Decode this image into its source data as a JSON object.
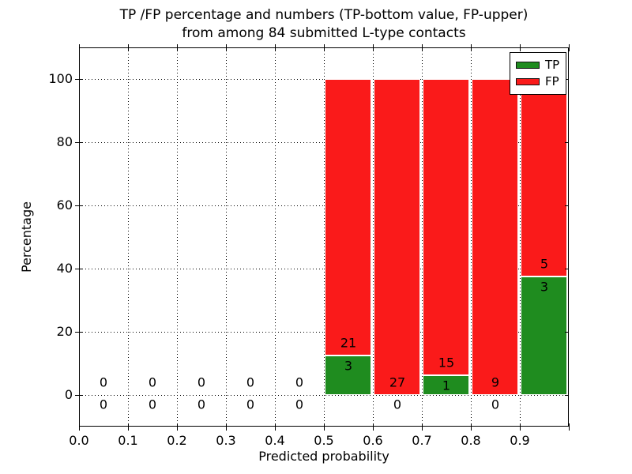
{
  "title": {
    "line1": "TP /FP percentage and numbers (TP-bottom value, FP-upper)",
    "line2": "from among 84 submitted L-type contacts"
  },
  "axes": {
    "x_label": "Predicted probability",
    "y_label": "Percentage",
    "x_tick_labels": [
      "0.0",
      "0.1",
      "0.2",
      "0.3",
      "0.4",
      "0.5",
      "0.6",
      "0.7",
      "0.8",
      "0.9"
    ],
    "y_tick_labels": [
      "0",
      "20",
      "40",
      "60",
      "80",
      "100"
    ]
  },
  "legend": {
    "position": "upper right",
    "items": [
      {
        "label": "TP",
        "color": "#1f8c1f"
      },
      {
        "label": "FP",
        "color": "#fa1a1a"
      }
    ]
  },
  "colors": {
    "tp": "#1f8c1f",
    "fp": "#fa1a1a",
    "grid": "#000000",
    "text": "#000000",
    "background": "#ffffff"
  },
  "chart_data": {
    "type": "bar",
    "stacked": true,
    "title": "TP /FP percentage and numbers (TP-bottom value, FP-upper) from among 84 submitted L-type contacts",
    "xlabel": "Predicted probability",
    "ylabel": "Percentage",
    "xlim": [
      0.0,
      1.0
    ],
    "ylim": [
      -10,
      110
    ],
    "grid": true,
    "grid_style": "dotted",
    "x_tick_values": [
      0.0,
      0.1,
      0.2,
      0.3,
      0.4,
      0.5,
      0.6,
      0.7,
      0.8,
      0.9,
      1.0
    ],
    "y_tick_values": [
      0,
      20,
      40,
      60,
      80,
      100
    ],
    "grid_x_values": [
      0.1,
      0.2,
      0.3,
      0.4,
      0.5,
      0.6,
      0.7,
      0.8,
      0.9
    ],
    "grid_y_values": [
      0,
      20,
      40,
      60,
      80,
      100
    ],
    "total_contacts": 84,
    "series": [
      {
        "name": "TP",
        "counts": [
          0,
          0,
          0,
          0,
          0,
          3,
          0,
          1,
          0,
          3
        ]
      },
      {
        "name": "FP",
        "counts": [
          0,
          0,
          0,
          0,
          0,
          21,
          27,
          15,
          9,
          5
        ]
      }
    ],
    "bins": [
      {
        "range": [
          0.0,
          0.1
        ],
        "tp": 0,
        "fp": 0,
        "tp_pct": 0,
        "fp_pct": 0
      },
      {
        "range": [
          0.1,
          0.2
        ],
        "tp": 0,
        "fp": 0,
        "tp_pct": 0,
        "fp_pct": 0
      },
      {
        "range": [
          0.2,
          0.3
        ],
        "tp": 0,
        "fp": 0,
        "tp_pct": 0,
        "fp_pct": 0
      },
      {
        "range": [
          0.3,
          0.4
        ],
        "tp": 0,
        "fp": 0,
        "tp_pct": 0,
        "fp_pct": 0
      },
      {
        "range": [
          0.4,
          0.5
        ],
        "tp": 0,
        "fp": 0,
        "tp_pct": 0,
        "fp_pct": 0
      },
      {
        "range": [
          0.5,
          0.6
        ],
        "tp": 3,
        "fp": 21,
        "tp_pct": 12.5,
        "fp_pct": 87.5
      },
      {
        "range": [
          0.6,
          0.7
        ],
        "tp": 0,
        "fp": 27,
        "tp_pct": 0,
        "fp_pct": 100
      },
      {
        "range": [
          0.7,
          0.8
        ],
        "tp": 1,
        "fp": 15,
        "tp_pct": 6.25,
        "fp_pct": 93.75
      },
      {
        "range": [
          0.8,
          0.9
        ],
        "tp": 0,
        "fp": 9,
        "tp_pct": 0,
        "fp_pct": 100
      },
      {
        "range": [
          0.9,
          1.0
        ],
        "tp": 3,
        "fp": 5,
        "tp_pct": 37.5,
        "fp_pct": 62.5
      }
    ]
  }
}
